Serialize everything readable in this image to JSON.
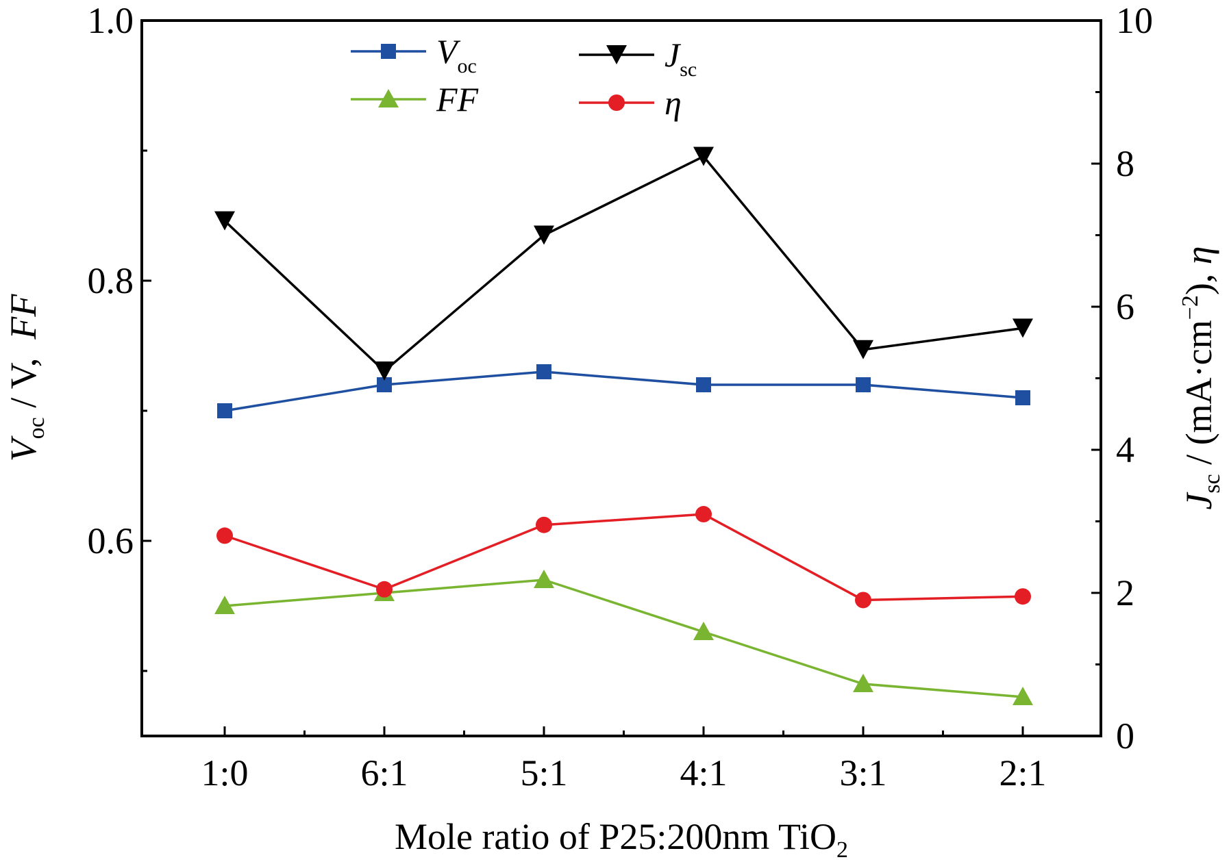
{
  "chart_data": {
    "type": "line",
    "xlabel": "Mole ratio of P25:200nm TiO2",
    "xlabel_main": "Mole ratio of P25:200nm TiO",
    "xlabel_sub": "2",
    "ylabel_left_parts": [
      "V",
      "oc",
      " / V,  ",
      "FF"
    ],
    "ylabel_right_parts": [
      "J",
      "sc",
      " / (mA·cm",
      "−2",
      "), ",
      "η"
    ],
    "categories": [
      "1:0",
      "6:1",
      "5:1",
      "4:1",
      "3:1",
      "2:1"
    ],
    "y_left": {
      "min": 0.45,
      "max": 1.0,
      "ticks": [
        "0.6",
        "0.8",
        "1.0"
      ],
      "tick_values": [
        0.6,
        0.8,
        1.0
      ]
    },
    "y_right": {
      "min": 0,
      "max": 10,
      "ticks": [
        "0",
        "2",
        "4",
        "6",
        "8",
        "10"
      ],
      "tick_values": [
        0,
        2,
        4,
        6,
        8,
        10
      ]
    },
    "legend_placement": "top-left",
    "series": [
      {
        "name": "Voc",
        "label_main": "V",
        "label_sub": "oc",
        "axis": "left",
        "color": "#1f4fa0",
        "marker": "square",
        "values": [
          0.7,
          0.72,
          0.73,
          0.72,
          0.72,
          0.71
        ]
      },
      {
        "name": "FF",
        "label_main": "FF",
        "label_sub": "",
        "axis": "left",
        "color": "#7ab532",
        "marker": "triangle-up",
        "values": [
          0.55,
          0.56,
          0.57,
          0.53,
          0.49,
          0.48
        ]
      },
      {
        "name": "Jsc",
        "label_main": "J",
        "label_sub": "sc",
        "axis": "right",
        "color": "#000000",
        "marker": "triangle-down",
        "values": [
          7.2,
          5.1,
          7.0,
          8.1,
          5.4,
          5.7
        ]
      },
      {
        "name": "η",
        "label_main": "η",
        "label_sub": "",
        "axis": "right",
        "color": "#e31e24",
        "marker": "circle",
        "values": [
          2.8,
          2.05,
          2.95,
          3.1,
          1.9,
          1.95
        ]
      }
    ]
  }
}
